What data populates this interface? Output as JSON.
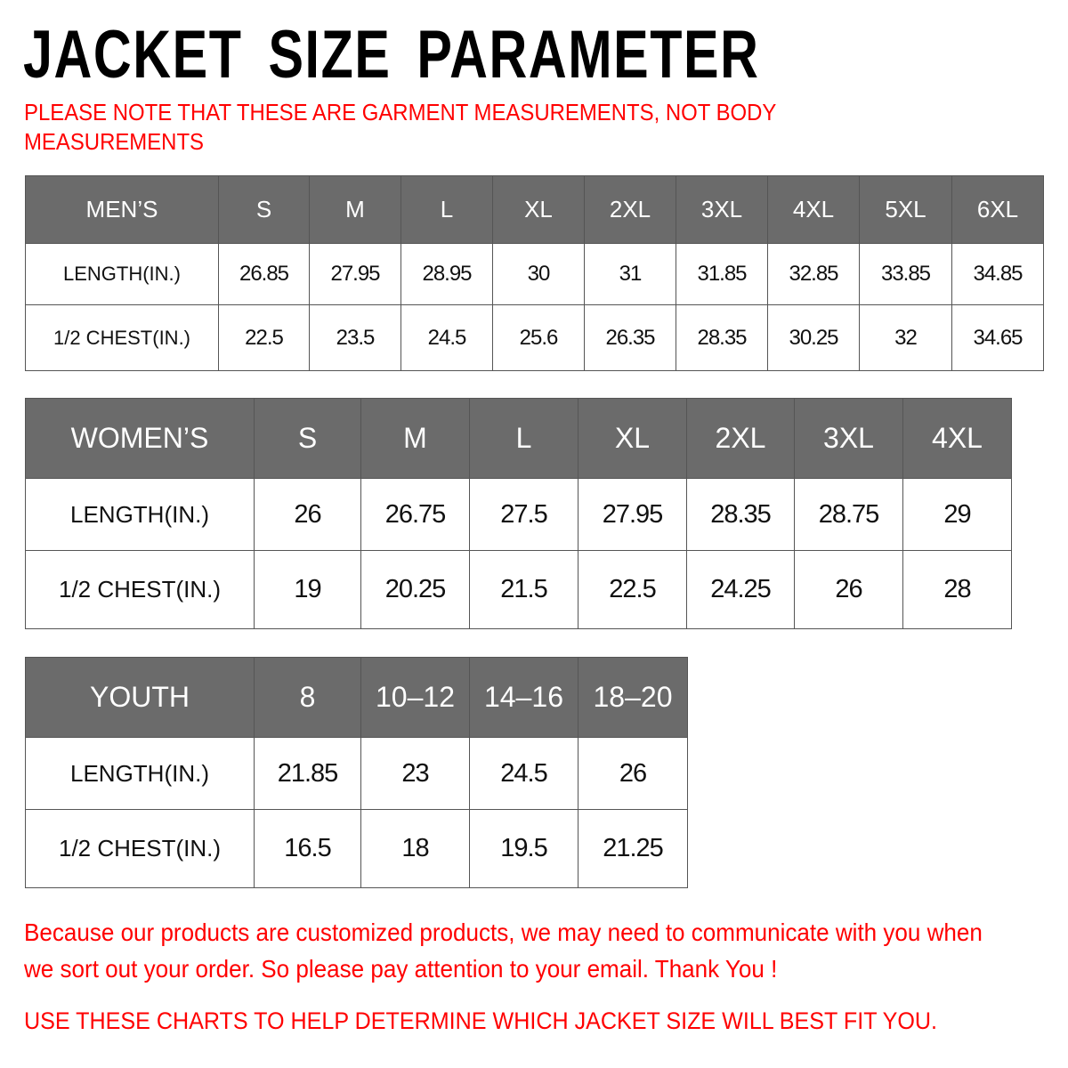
{
  "title": "JACKET SIZE PARAMETER",
  "note": "PLEASE NOTE THAT THESE ARE GARMENT MEASUREMENTS, NOT BODY MEASUREMENTS",
  "colors": {
    "header_bg": "#6b6b6b",
    "header_text": "#ffffff",
    "note_red": "#ff0000"
  },
  "tables": [
    {
      "headers": [
        "MEN’S",
        "S",
        "M",
        "L",
        "XL",
        "2XL",
        "3XL",
        "4XL",
        "5XL",
        "6XL"
      ],
      "rows": [
        [
          "LENGTH(IN.)",
          "26.85",
          "27.95",
          "28.95",
          "30",
          "31",
          "31.85",
          "32.85",
          "33.85",
          "34.85"
        ],
        [
          "1/2 CHEST(IN.)",
          "22.5",
          "23.5",
          "24.5",
          "25.6",
          "26.35",
          "28.35",
          "30.25",
          "32",
          "34.65"
        ]
      ]
    },
    {
      "headers": [
        "WOMEN’S",
        "S",
        "M",
        "L",
        "XL",
        "2XL",
        "3XL",
        "4XL"
      ],
      "rows": [
        [
          "LENGTH(IN.)",
          "26",
          "26.75",
          "27.5",
          "27.95",
          "28.35",
          "28.75",
          "29"
        ],
        [
          "1/2 CHEST(IN.)",
          "19",
          "20.25",
          "21.5",
          "22.5",
          "24.25",
          "26",
          "28"
        ]
      ]
    },
    {
      "headers": [
        "YOUTH",
        "8",
        "10–12",
        "14–16",
        "18–20"
      ],
      "rows": [
        [
          "LENGTH(IN.)",
          "21.85",
          "23",
          "24.5",
          "26"
        ],
        [
          "1/2 CHEST(IN.)",
          "16.5",
          "18",
          "19.5",
          "21.25"
        ]
      ]
    }
  ],
  "footer": {
    "message": "Because our products are customized products, we may need to communicate with you when we sort out your order. So please pay attention to your email. Thank You !",
    "advice": "USE THESE CHARTS TO HELP DETERMINE WHICH JACKET SIZE WILL BEST FIT YOU."
  }
}
